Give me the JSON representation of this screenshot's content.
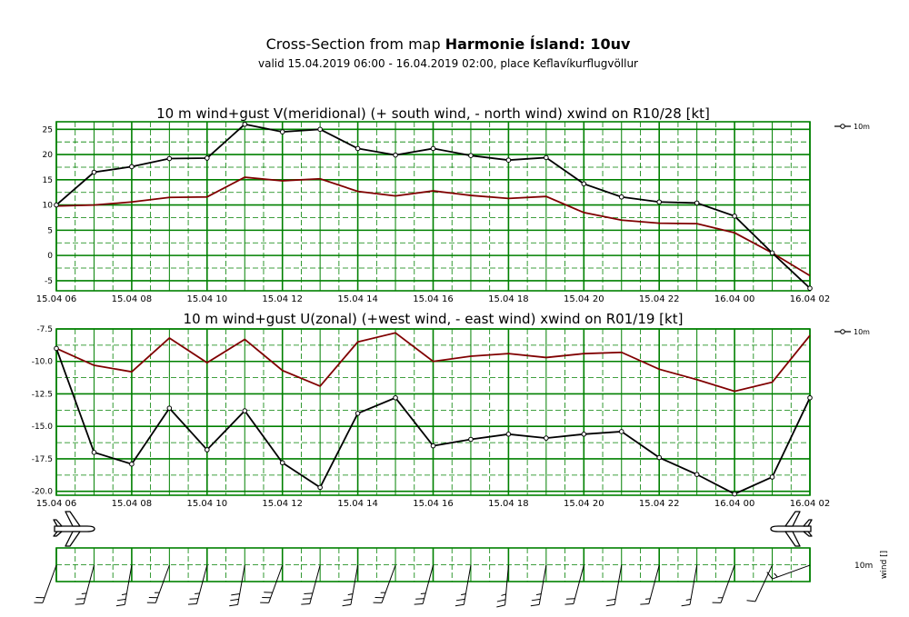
{
  "header": {
    "title_prefix": "Cross-Section from map ",
    "title_bold": "Harmonie Ísland: 10uv",
    "subtitle": "valid 15.04.2019 06:00 - 16.04.2019 02:00, place Keflavíkurflugvöllur"
  },
  "colors": {
    "grid": "#008000",
    "series_primary": "#000000",
    "series_secondary": "#800000",
    "background": "#ffffff"
  },
  "icons": [
    "airplane-icon",
    "wind-barb-icon"
  ],
  "chart_data": [
    {
      "type": "line",
      "title": "10 m wind+gust V(meridional) (+ south wind, - north wind) xwind on R10/28 [kt]",
      "x": [
        "15.04 06",
        "15.04 07",
        "15.04 08",
        "15.04 09",
        "15.04 10",
        "15.04 11",
        "15.04 12",
        "15.04 13",
        "15.04 14",
        "15.04 15",
        "15.04 16",
        "15.04 17",
        "15.04 18",
        "15.04 19",
        "15.04 20",
        "15.04 21",
        "15.04 22",
        "15.04 23",
        "16.04 00",
        "16.04 01",
        "16.04 02"
      ],
      "xtick_labels": [
        "15.04 06",
        "15.04 08",
        "15.04 10",
        "15.04 12",
        "15.04 14",
        "15.04 16",
        "15.04 18",
        "15.04 20",
        "15.04 22",
        "16.04 00",
        "16.04 02"
      ],
      "ylim": [
        -7,
        26.5
      ],
      "yticks": [
        -5,
        0,
        5,
        10,
        15,
        20,
        25
      ],
      "ytick_labels": [
        "-5",
        "0",
        "5",
        "10",
        "15",
        "20",
        "25"
      ],
      "legend": {
        "entries": [
          "10m"
        ],
        "position": "right"
      },
      "grid": true,
      "series": [
        {
          "name": "10m",
          "color": "#000000",
          "markers": true,
          "values": [
            10.0,
            16.5,
            17.6,
            19.2,
            19.3,
            26.0,
            24.5,
            25.0,
            21.2,
            19.9,
            21.2,
            19.8,
            18.9,
            19.4,
            14.2,
            11.6,
            10.6,
            10.4,
            7.8,
            0.5,
            -6.5
          ]
        },
        {
          "values": [
            9.8,
            10.0,
            10.6,
            11.5,
            11.6,
            15.5,
            14.8,
            15.2,
            12.7,
            11.8,
            12.8,
            11.9,
            11.3,
            11.7,
            8.5,
            7.0,
            6.4,
            6.3,
            4.5,
            0.5,
            -4.0
          ]
        }
      ]
    },
    {
      "type": "line",
      "title": "10 m wind+gust U(zonal) (+west wind, - east wind) xwind on R01/19 [kt]",
      "x": [
        "15.04 06",
        "15.04 07",
        "15.04 08",
        "15.04 09",
        "15.04 10",
        "15.04 11",
        "15.04 12",
        "15.04 13",
        "15.04 14",
        "15.04 15",
        "15.04 16",
        "15.04 17",
        "15.04 18",
        "15.04 19",
        "15.04 20",
        "15.04 21",
        "15.04 22",
        "15.04 23",
        "16.04 00",
        "16.04 01",
        "16.04 02"
      ],
      "xtick_labels": [
        "15.04 06",
        "15.04 08",
        "15.04 10",
        "15.04 12",
        "15.04 14",
        "15.04 16",
        "15.04 18",
        "15.04 20",
        "15.04 22",
        "16.04 00",
        "16.04 02"
      ],
      "ylim": [
        -20.3,
        -7.5
      ],
      "yticks": [
        -7.5,
        -10,
        -12.5,
        -15,
        -17.5,
        -20
      ],
      "ytick_labels": [
        "-7.5",
        "-10.0",
        "-12.5",
        "-15.0",
        "-17.5",
        "-20.0"
      ],
      "legend": {
        "entries": [
          "10m"
        ],
        "position": "right"
      },
      "grid": true,
      "series": [
        {
          "name": "10m",
          "color": "#000000",
          "markers": true,
          "values": [
            -9.0,
            -17.0,
            -17.9,
            -13.6,
            -16.8,
            -13.8,
            -17.8,
            -19.7,
            -14.0,
            -12.8,
            -16.5,
            -16.0,
            -15.6,
            -15.9,
            -15.6,
            -15.4,
            -17.4,
            -18.7,
            -20.2,
            -18.9,
            -12.8
          ]
        },
        {
          "values": [
            -9.0,
            -10.3,
            -10.8,
            -8.2,
            -10.1,
            -8.3,
            -10.7,
            -11.9,
            -8.5,
            -7.8,
            -10.0,
            -9.6,
            -9.4,
            -9.7,
            -9.4,
            -9.3,
            -10.6,
            -11.4,
            -12.3,
            -11.6,
            -8.0
          ]
        }
      ]
    },
    {
      "type": "wind-barb",
      "labels": [
        "10m",
        "wind []"
      ],
      "directions_deg": [
        200,
        195,
        190,
        200,
        195,
        190,
        200,
        195,
        190,
        200,
        195,
        190,
        185,
        190,
        195,
        190,
        195,
        190,
        200,
        205,
        250
      ],
      "speeds_kt": [
        20,
        25,
        25,
        25,
        25,
        30,
        30,
        30,
        25,
        25,
        25,
        25,
        25,
        25,
        20,
        20,
        15,
        15,
        15,
        10,
        15
      ]
    }
  ]
}
